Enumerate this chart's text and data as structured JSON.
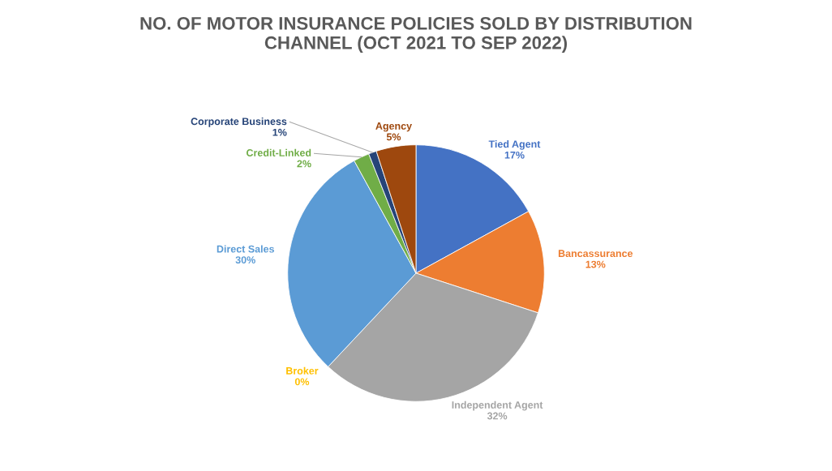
{
  "chart_data": {
    "type": "pie",
    "title": "NO. OF MOTOR INSURANCE POLICIES SOLD BY DISTRIBUTION\nCHANNEL (OCT 2021 TO SEP 2022)",
    "categories": [
      "Tied Agent",
      "Bancassurance",
      "Independent Agent",
      "Broker",
      "Direct Sales",
      "Credit-Linked",
      "Corporate Business",
      "Agency"
    ],
    "values": [
      17,
      13,
      32,
      0,
      30,
      2,
      1,
      5
    ],
    "colors": [
      "#4472c4",
      "#ed7d31",
      "#a5a5a5",
      "#ffc000",
      "#5b9bd5",
      "#70ad47",
      "#264478",
      "#9e480e"
    ],
    "value_labels": [
      "17%",
      "13%",
      "32%",
      "0%",
      "30%",
      "2%",
      "1%",
      "5%"
    ],
    "legend": false
  }
}
